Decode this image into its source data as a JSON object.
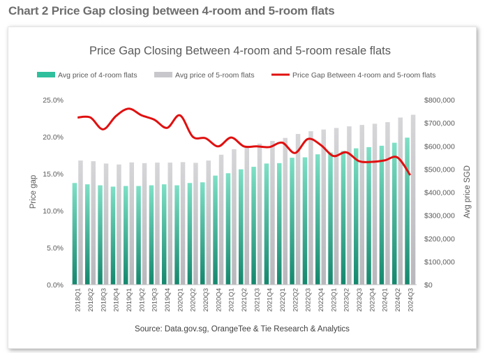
{
  "page": {
    "heading": "Chart 2 Price Gap closing between 4-room and 5-room flats"
  },
  "colors": {
    "four_room": "#2fbf9d",
    "four_room_dark": "#178a70",
    "five_room": "#c8c8cc",
    "gap_line": "#e01010",
    "text": "#595959"
  },
  "chart_data": {
    "type": "bar+line",
    "title": "Price Gap Closing Between 4-room and 5-room resale flats",
    "source": "Source: Data.gov.sg, OrangeTee & Tie Research & Analytics",
    "left_axis_label": "Price gap",
    "right_axis_label": "Avg price SGD",
    "left_ticks": [
      "25.0%",
      "20.0%",
      "15.0%",
      "10.0%",
      "5.0%",
      "0.0%"
    ],
    "right_ticks": [
      "$800,000",
      "$700,000",
      "$600,000",
      "$500,000",
      "$400,000",
      "$300,000",
      "$200,000",
      "$100,000",
      "$0"
    ],
    "left_range": [
      0,
      25
    ],
    "right_range": [
      0,
      800000
    ],
    "categories": [
      "2018Q1",
      "2018Q2",
      "2018Q3",
      "2018Q4",
      "2019Q1",
      "2019Q2",
      "2019Q3",
      "2019Q4",
      "2020Q1",
      "2020Q2",
      "2020Q3",
      "2020Q4",
      "2021Q1",
      "2021Q2",
      "2021Q3",
      "2021Q4",
      "2022Q1",
      "2022Q2",
      "2022Q3",
      "2022Q4",
      "2023Q1",
      "2023Q2",
      "2023Q3",
      "2023Q4",
      "2024Q1",
      "2024Q2",
      "2024Q3"
    ],
    "series": [
      {
        "name": "Avg price of 4-room flats",
        "type": "bar",
        "axis": "right",
        "values": [
          440000,
          434000,
          430000,
          424000,
          427000,
          427000,
          430000,
          434000,
          430000,
          440000,
          443000,
          472000,
          482000,
          499000,
          510000,
          524000,
          526000,
          549000,
          551000,
          564000,
          572000,
          578000,
          590000,
          595000,
          601000,
          614000,
          636000
        ]
      },
      {
        "name": "Avg price of 5-room flats",
        "type": "bar",
        "axis": "right",
        "values": [
          537000,
          534000,
          524000,
          520000,
          529000,
          526000,
          528000,
          528000,
          530000,
          527000,
          537000,
          562000,
          586000,
          601000,
          610000,
          622000,
          635000,
          652000,
          664000,
          671000,
          678000,
          685000,
          691000,
          696000,
          703000,
          723000,
          735000
        ]
      },
      {
        "name": "Price Gap Between 4-room and 5-room flats",
        "type": "line",
        "axis": "left",
        "values": [
          22.6,
          22.6,
          21.0,
          22.8,
          23.8,
          22.9,
          22.3,
          21.2,
          22.9,
          20.0,
          19.8,
          18.7,
          19.9,
          18.7,
          18.7,
          18.6,
          19.2,
          17.8,
          19.7,
          18.9,
          17.4,
          17.9,
          16.7,
          16.6,
          16.8,
          17.2,
          14.8
        ]
      }
    ]
  }
}
